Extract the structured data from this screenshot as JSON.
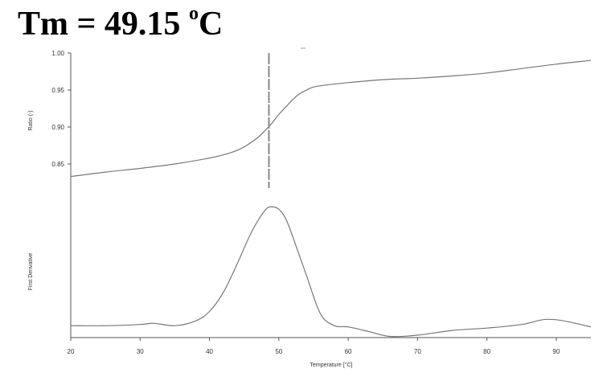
{
  "headline": {
    "prefix": "Tm = 49.15 ",
    "degree": "o",
    "unit": "C"
  },
  "chart_data": {
    "type": "line",
    "title": "Tm = 49.15 °C",
    "xlabel": "Temperature [°C]",
    "xlim": [
      20,
      95
    ],
    "xticks": [
      "20",
      "30",
      "40",
      "50",
      "60",
      "70",
      "80",
      "90"
    ],
    "tm_marker": 49.15,
    "panels": [
      {
        "name": "ratio",
        "ylabel": "Ratio (-)",
        "ylim": [
          0.8,
          1.0
        ],
        "yticks": [
          "0.85",
          "0.90",
          "0.95",
          "1.00"
        ],
        "x": [
          20,
          25,
          30,
          35,
          40,
          43,
          45,
          47,
          48,
          49,
          50,
          51,
          52,
          53,
          54,
          55,
          57,
          60,
          65,
          70,
          75,
          80,
          85,
          90,
          95
        ],
        "y": [
          0.833,
          0.839,
          0.844,
          0.85,
          0.858,
          0.865,
          0.873,
          0.886,
          0.895,
          0.905,
          0.917,
          0.927,
          0.937,
          0.945,
          0.95,
          0.954,
          0.957,
          0.96,
          0.964,
          0.966,
          0.969,
          0.973,
          0.979,
          0.985,
          0.99
        ]
      },
      {
        "name": "derivative",
        "ylabel": "First Derivative",
        "ylim": [
          -0.1,
          1.05
        ],
        "yticks": [],
        "x": [
          20,
          25,
          30,
          32,
          35,
          38,
          40,
          42,
          44,
          46,
          48,
          49,
          50,
          51,
          52,
          54,
          56,
          58,
          60,
          63,
          66,
          70,
          75,
          80,
          85,
          88,
          90,
          92,
          95
        ],
        "y": [
          0.0,
          0.0,
          0.01,
          0.02,
          0.0,
          0.04,
          0.12,
          0.28,
          0.52,
          0.78,
          0.97,
          1.0,
          0.98,
          0.9,
          0.75,
          0.42,
          0.1,
          0.0,
          -0.01,
          -0.05,
          -0.09,
          -0.08,
          -0.04,
          -0.02,
          0.01,
          0.05,
          0.05,
          0.03,
          -0.01
        ]
      }
    ]
  }
}
